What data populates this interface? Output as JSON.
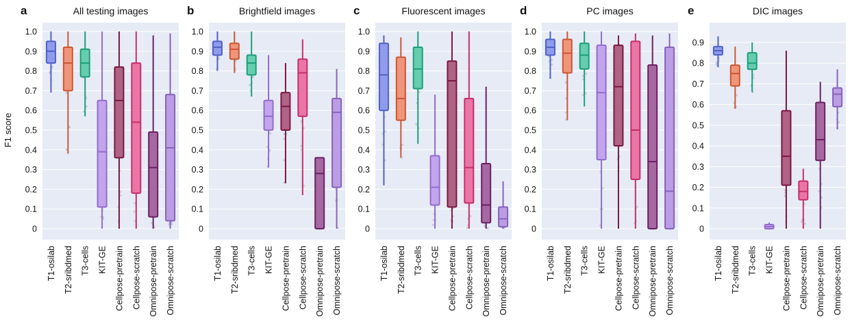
{
  "figure": {
    "ylabel": "F1 score"
  },
  "chart_data": [
    {
      "type": "box",
      "letter": "a",
      "title": "All testing images",
      "ylim": [
        0,
        1.0
      ],
      "yticks": [
        0,
        0.1,
        0.2,
        0.3,
        0.4,
        0.5,
        0.6,
        0.7,
        0.8,
        0.9,
        1.0
      ],
      "yticklabels": [
        "0",
        "0.1",
        "0.2",
        "0.3",
        "0.4",
        "0.5",
        "0.6",
        "0.7",
        "0.8",
        "0.9",
        "1.0"
      ],
      "categories": [
        "T1-osilab",
        "T2-sribdmed",
        "T3-cells",
        "KIT-GE",
        "Cellpose-pretrain",
        "Cellpose-scratch",
        "Omnipose-pretrain",
        "Omnipose-scratch"
      ],
      "colors": [
        "#5b6ee1",
        "#e8633a",
        "#1fb589",
        "#a77be6",
        "#8b1a4a",
        "#e0357a",
        "#7b2374",
        "#9b6fd6"
      ],
      "boxes": [
        {
          "whislo": 0.69,
          "q1": 0.84,
          "med": 0.9,
          "q3": 0.95,
          "whishi": 1.0
        },
        {
          "whislo": 0.38,
          "q1": 0.7,
          "med": 0.84,
          "q3": 0.92,
          "whishi": 1.0
        },
        {
          "whislo": 0.57,
          "q1": 0.77,
          "med": 0.84,
          "q3": 0.91,
          "whishi": 1.0
        },
        {
          "whislo": 0.0,
          "q1": 0.11,
          "med": 0.39,
          "q3": 0.65,
          "whishi": 1.0
        },
        {
          "whislo": 0.0,
          "q1": 0.36,
          "med": 0.65,
          "q3": 0.82,
          "whishi": 1.0
        },
        {
          "whislo": 0.0,
          "q1": 0.18,
          "med": 0.54,
          "q3": 0.84,
          "whishi": 1.0
        },
        {
          "whislo": 0.0,
          "q1": 0.06,
          "med": 0.31,
          "q3": 0.49,
          "whishi": 0.98
        },
        {
          "whislo": 0.0,
          "q1": 0.04,
          "med": 0.41,
          "q3": 0.68,
          "whishi": 0.99
        }
      ]
    },
    {
      "type": "box",
      "letter": "b",
      "title": "Brightfield images",
      "ylim": [
        0,
        1.0
      ],
      "yticks": [
        0,
        0.1,
        0.2,
        0.3,
        0.4,
        0.5,
        0.6,
        0.7,
        0.8,
        0.9,
        1.0
      ],
      "yticklabels": [
        "0",
        "0.1",
        "0.2",
        "0.3",
        "0.4",
        "0.5",
        "0.6",
        "0.7",
        "0.8",
        "0.9",
        "1.0"
      ],
      "categories": [
        "T1-osilab",
        "T2-sribdmed",
        "T3-cells",
        "KIT-GE",
        "Cellpose-pretrain",
        "Cellpose-scratch",
        "Omnipose-pretrain",
        "Omnipose-scratch"
      ],
      "colors": [
        "#5b6ee1",
        "#e8633a",
        "#1fb589",
        "#a77be6",
        "#8b1a4a",
        "#e0357a",
        "#7b2374",
        "#9b6fd6"
      ],
      "boxes": [
        {
          "whislo": 0.8,
          "q1": 0.88,
          "med": 0.92,
          "q3": 0.95,
          "whishi": 1.0
        },
        {
          "whislo": 0.79,
          "q1": 0.86,
          "med": 0.91,
          "q3": 0.94,
          "whishi": 1.0
        },
        {
          "whislo": 0.67,
          "q1": 0.78,
          "med": 0.84,
          "q3": 0.88,
          "whishi": 1.0
        },
        {
          "whislo": 0.31,
          "q1": 0.5,
          "med": 0.57,
          "q3": 0.65,
          "whishi": 0.88
        },
        {
          "whislo": 0.23,
          "q1": 0.5,
          "med": 0.62,
          "q3": 0.69,
          "whishi": 0.84
        },
        {
          "whislo": 0.17,
          "q1": 0.57,
          "med": 0.79,
          "q3": 0.86,
          "whishi": 0.96
        },
        {
          "whislo": 0.0,
          "q1": 0.0,
          "med": 0.28,
          "q3": 0.36,
          "whishi": 0.36
        },
        {
          "whislo": 0.0,
          "q1": 0.21,
          "med": 0.59,
          "q3": 0.66,
          "whishi": 0.81
        }
      ]
    },
    {
      "type": "box",
      "letter": "c",
      "title": "Fluorescent images",
      "ylim": [
        0,
        1.0
      ],
      "yticks": [
        0,
        0.1,
        0.2,
        0.3,
        0.4,
        0.5,
        0.6,
        0.7,
        0.8,
        0.9,
        1.0
      ],
      "yticklabels": [
        "0",
        "0.1",
        "0.2",
        "0.3",
        "0.4",
        "0.5",
        "0.6",
        "0.7",
        "0.8",
        "0.9",
        "1.0"
      ],
      "categories": [
        "T1-osilab",
        "T2-sribdmed",
        "T3-cells",
        "KIT-GE",
        "Cellpose-pretrain",
        "Cellpose-scratch",
        "Omnipose-pretrain",
        "Omnipose-scratch"
      ],
      "colors": [
        "#5b6ee1",
        "#e8633a",
        "#1fb589",
        "#a77be6",
        "#8b1a4a",
        "#e0357a",
        "#7b2374",
        "#9b6fd6"
      ],
      "boxes": [
        {
          "whislo": 0.22,
          "q1": 0.6,
          "med": 0.78,
          "q3": 0.94,
          "whishi": 0.98
        },
        {
          "whislo": 0.36,
          "q1": 0.55,
          "med": 0.66,
          "q3": 0.87,
          "whishi": 0.97
        },
        {
          "whislo": 0.43,
          "q1": 0.71,
          "med": 0.81,
          "q3": 0.92,
          "whishi": 1.0
        },
        {
          "whislo": 0.0,
          "q1": 0.12,
          "med": 0.21,
          "q3": 0.37,
          "whishi": 0.68
        },
        {
          "whislo": 0.0,
          "q1": 0.11,
          "med": 0.75,
          "q3": 0.85,
          "whishi": 1.0
        },
        {
          "whislo": 0.0,
          "q1": 0.13,
          "med": 0.31,
          "q3": 0.66,
          "whishi": 1.0
        },
        {
          "whislo": 0.0,
          "q1": 0.03,
          "med": 0.12,
          "q3": 0.33,
          "whishi": 0.72
        },
        {
          "whislo": 0.0,
          "q1": 0.01,
          "med": 0.05,
          "q3": 0.11,
          "whishi": 0.24
        }
      ]
    },
    {
      "type": "box",
      "letter": "d",
      "title": "PC images",
      "ylim": [
        0,
        1.0
      ],
      "yticks": [
        0,
        0.1,
        0.2,
        0.3,
        0.4,
        0.5,
        0.6,
        0.7,
        0.8,
        0.9,
        1.0
      ],
      "yticklabels": [
        "0",
        "0.1",
        "0.2",
        "0.3",
        "0.4",
        "0.5",
        "0.6",
        "0.7",
        "0.8",
        "0.9",
        "1.0"
      ],
      "categories": [
        "T1-osilab",
        "T2-sribdmed",
        "T3-cells",
        "KIT-GE",
        "Cellpose-pretrain",
        "Cellpose-scratch",
        "Omnipose-pretrain",
        "Omnipose-scratch"
      ],
      "colors": [
        "#5b6ee1",
        "#e8633a",
        "#1fb589",
        "#a77be6",
        "#8b1a4a",
        "#e0357a",
        "#7b2374",
        "#9b6fd6"
      ],
      "boxes": [
        {
          "whislo": 0.76,
          "q1": 0.88,
          "med": 0.92,
          "q3": 0.96,
          "whishi": 1.0
        },
        {
          "whislo": 0.55,
          "q1": 0.79,
          "med": 0.89,
          "q3": 0.96,
          "whishi": 1.0
        },
        {
          "whislo": 0.62,
          "q1": 0.81,
          "med": 0.88,
          "q3": 0.94,
          "whishi": 1.0
        },
        {
          "whislo": 0.0,
          "q1": 0.35,
          "med": 0.69,
          "q3": 0.93,
          "whishi": 1.0
        },
        {
          "whislo": 0.0,
          "q1": 0.42,
          "med": 0.72,
          "q3": 0.93,
          "whishi": 0.98
        },
        {
          "whislo": 0.0,
          "q1": 0.25,
          "med": 0.5,
          "q3": 0.95,
          "whishi": 0.99
        },
        {
          "whislo": 0.0,
          "q1": 0.0,
          "med": 0.34,
          "q3": 0.83,
          "whishi": 0.98
        },
        {
          "whislo": 0.0,
          "q1": 0.0,
          "med": 0.19,
          "q3": 0.92,
          "whishi": 0.99
        }
      ]
    },
    {
      "type": "box",
      "letter": "e",
      "title": "DIC images",
      "ylim": [
        0,
        0.9
      ],
      "yticks": [
        0,
        0.1,
        0.2,
        0.3,
        0.4,
        0.5,
        0.6,
        0.7,
        0.8,
        0.9
      ],
      "yticklabels": [
        "0",
        "0.1",
        "0.2",
        "0.3",
        "0.4",
        "0.5",
        "0.6",
        "0.7",
        "0.8",
        "0.9"
      ],
      "categories": [
        "T1-osilab",
        "T2-sribdmed",
        "T3-cells",
        "KIT-GE",
        "Cellpose-pretrain",
        "Cellpose-scratch",
        "Omnipose-pretrain",
        "Omnipose-scratch"
      ],
      "colors": [
        "#5b6ee1",
        "#e8633a",
        "#1fb589",
        "#a77be6",
        "#8b1a4a",
        "#e0357a",
        "#7b2374",
        "#9b6fd6"
      ],
      "boxes": [
        {
          "whislo": 0.78,
          "q1": 0.84,
          "med": 0.86,
          "q3": 0.88,
          "whishi": 0.93
        },
        {
          "whislo": 0.58,
          "q1": 0.69,
          "med": 0.75,
          "q3": 0.79,
          "whishi": 0.88
        },
        {
          "whislo": 0.66,
          "q1": 0.77,
          "med": 0.8,
          "q3": 0.85,
          "whishi": 0.9
        },
        {
          "whislo": 0.0,
          "q1": 0.0,
          "med": 0.01,
          "q3": 0.02,
          "whishi": 0.03
        },
        {
          "whislo": 0.0,
          "q1": 0.21,
          "med": 0.35,
          "q3": 0.57,
          "whishi": 0.86
        },
        {
          "whislo": 0.0,
          "q1": 0.14,
          "med": 0.18,
          "q3": 0.23,
          "whishi": 0.29
        },
        {
          "whislo": 0.0,
          "q1": 0.33,
          "med": 0.43,
          "q3": 0.61,
          "whishi": 0.71
        },
        {
          "whislo": 0.48,
          "q1": 0.59,
          "med": 0.65,
          "q3": 0.68,
          "whishi": 0.77
        }
      ]
    }
  ]
}
